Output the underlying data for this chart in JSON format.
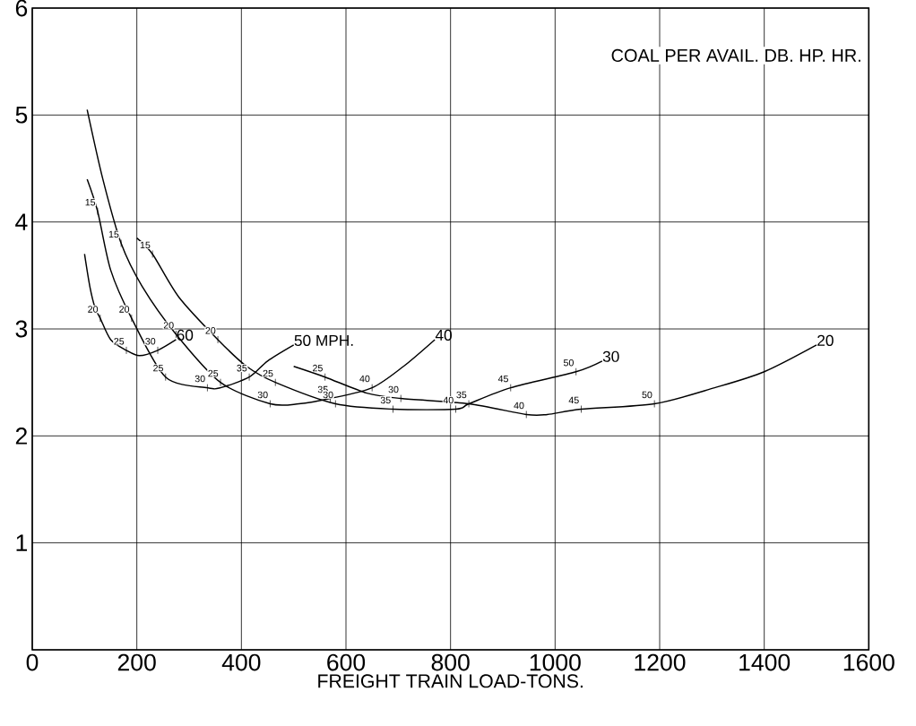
{
  "chart_data": {
    "type": "line",
    "title": "COAL PER AVAIL. DB. HP. HR.",
    "xlabel": "FREIGHT TRAIN LOAD-TONS.",
    "xlim": [
      0,
      1600
    ],
    "ylim": [
      0,
      6
    ],
    "xticks": [
      0,
      200,
      400,
      600,
      800,
      1000,
      1200,
      1400,
      1600
    ],
    "yticks": [
      {
        "value": 0,
        "label": null
      },
      1,
      2,
      3,
      4,
      5,
      6
    ],
    "grid": true,
    "marker": "none",
    "line_style": "solid",
    "series": [
      {
        "name": "60",
        "color": "#000000",
        "x": [
          100,
          110,
          120,
          130,
          150,
          180,
          205,
          240,
          275
        ],
        "values": [
          3.7,
          3.4,
          3.2,
          3.1,
          2.9,
          2.8,
          2.75,
          2.8,
          2.9
        ]
      },
      {
        "name": "50 MPH.",
        "color": "#000000",
        "x": [
          105,
          125,
          150,
          190,
          255,
          335,
          360,
          415,
          450,
          500
        ],
        "values": [
          4.4,
          4.1,
          3.55,
          3.1,
          2.55,
          2.45,
          2.45,
          2.55,
          2.7,
          2.85
        ]
      },
      {
        "name": "40",
        "color": "#000000",
        "x": [
          105,
          135,
          170,
          210,
          275,
          360,
          455,
          510,
          570,
          650,
          710,
          770
        ],
        "values": [
          5.05,
          4.4,
          3.8,
          3.4,
          2.95,
          2.5,
          2.3,
          2.3,
          2.35,
          2.45,
          2.65,
          2.9
        ]
      },
      {
        "name": "30",
        "color": "#000000",
        "x": [
          200,
          230,
          280,
          355,
          410,
          465,
          580,
          690,
          810,
          835,
          915,
          1040,
          1090
        ],
        "values": [
          3.85,
          3.7,
          3.3,
          2.9,
          2.65,
          2.5,
          2.3,
          2.25,
          2.25,
          2.3,
          2.45,
          2.6,
          2.7
        ]
      },
      {
        "name": "20",
        "color": "#000000",
        "x": [
          500,
          560,
          640,
          705,
          835,
          945,
          985,
          1050,
          1190,
          1305,
          1400,
          1500
        ],
        "values": [
          2.65,
          2.55,
          2.4,
          2.35,
          2.3,
          2.2,
          2.2,
          2.25,
          2.3,
          2.45,
          2.6,
          2.85
        ]
      }
    ],
    "annotations": [
      {
        "text": "20",
        "x": 130,
        "y": 3.1
      },
      {
        "text": "25",
        "x": 180,
        "y": 2.8
      },
      {
        "text": "30",
        "x": 240,
        "y": 2.8
      },
      {
        "text": "15",
        "x": 125,
        "y": 4.1
      },
      {
        "text": "20",
        "x": 190,
        "y": 3.1
      },
      {
        "text": "25",
        "x": 255,
        "y": 2.55
      },
      {
        "text": "30",
        "x": 335,
        "y": 2.45
      },
      {
        "text": "35",
        "x": 415,
        "y": 2.55
      },
      {
        "text": "15",
        "x": 170,
        "y": 3.8
      },
      {
        "text": "20",
        "x": 275,
        "y": 2.95
      },
      {
        "text": "25",
        "x": 360,
        "y": 2.5
      },
      {
        "text": "30",
        "x": 455,
        "y": 2.3
      },
      {
        "text": "35",
        "x": 570,
        "y": 2.35
      },
      {
        "text": "40",
        "x": 650,
        "y": 2.45
      },
      {
        "text": "15",
        "x": 230,
        "y": 3.7
      },
      {
        "text": "20",
        "x": 355,
        "y": 2.9
      },
      {
        "text": "25",
        "x": 465,
        "y": 2.5
      },
      {
        "text": "30",
        "x": 580,
        "y": 2.3
      },
      {
        "text": "35",
        "x": 690,
        "y": 2.25
      },
      {
        "text": "40",
        "x": 810,
        "y": 2.25
      },
      {
        "text": "45",
        "x": 915,
        "y": 2.45
      },
      {
        "text": "50",
        "x": 1040,
        "y": 2.6
      },
      {
        "text": "25",
        "x": 560,
        "y": 2.55
      },
      {
        "text": "30",
        "x": 705,
        "y": 2.35
      },
      {
        "text": "35",
        "x": 835,
        "y": 2.3
      },
      {
        "text": "40",
        "x": 945,
        "y": 2.2
      },
      {
        "text": "45",
        "x": 1050,
        "y": 2.25
      },
      {
        "text": "50",
        "x": 1190,
        "y": 2.3
      }
    ]
  }
}
